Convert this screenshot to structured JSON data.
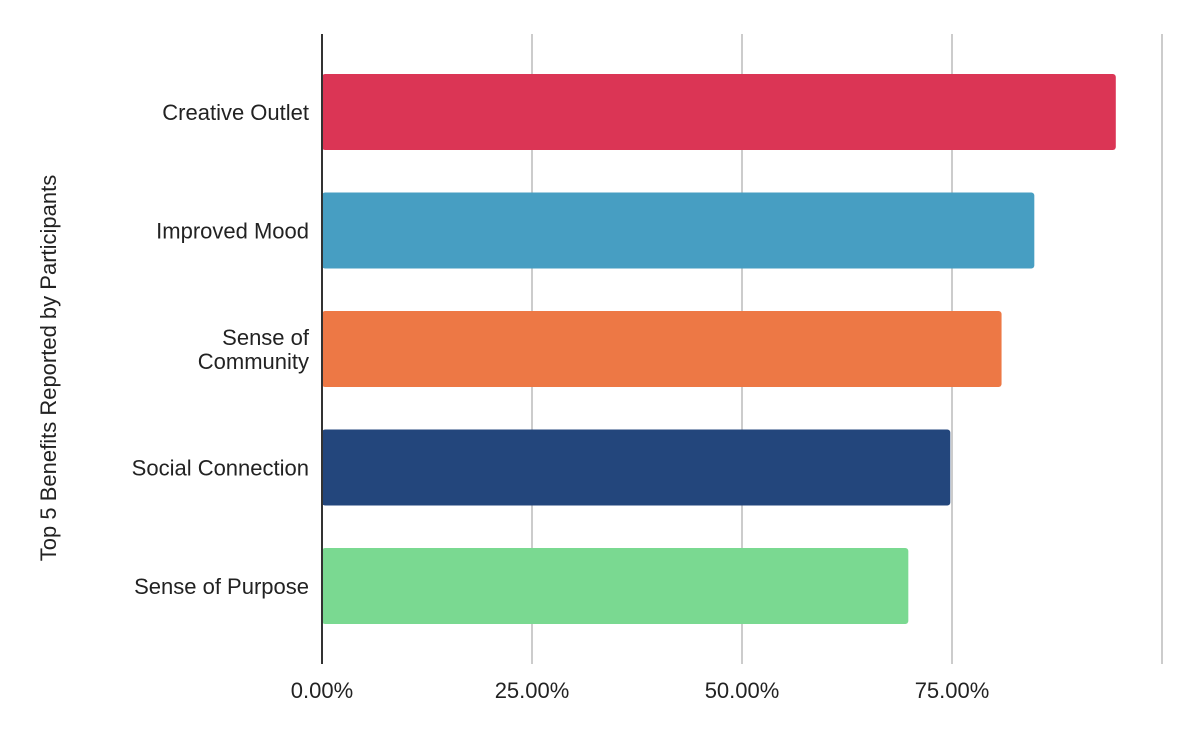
{
  "chart_data": {
    "type": "bar",
    "orientation": "horizontal",
    "title": "",
    "ylabel": "Top 5 Benefits Reported by Participants",
    "xlabel": "",
    "categories": [
      {
        "lines": [
          "Creative Outlet"
        ]
      },
      {
        "lines": [
          "Improved Mood"
        ]
      },
      {
        "lines": [
          "Sense of",
          "Community"
        ]
      },
      {
        "lines": [
          "Social Connection"
        ]
      },
      {
        "lines": [
          "Sense of Purpose"
        ]
      }
    ],
    "values": [
      0.945,
      0.848,
      0.809,
      0.748,
      0.698
    ],
    "colors": [
      "#db3555",
      "#479ec2",
      "#ed7845",
      "#23467c",
      "#7ad991"
    ],
    "xlim": [
      0,
      1.0
    ],
    "xticks": [
      0,
      0.25,
      0.5,
      0.75
    ],
    "xtick_labels": [
      "0.00%",
      "25.00%",
      "50.00%",
      "75.00%"
    ],
    "grid": true,
    "legend": "none"
  }
}
